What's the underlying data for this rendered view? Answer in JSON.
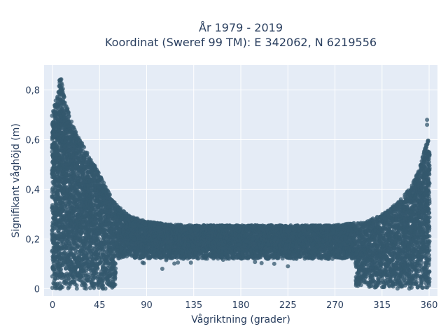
{
  "chart_data": {
    "type": "scatter",
    "title_line1": "År 1979 - 2019",
    "title_line2": "Koordinat (Sweref 99 TM): E 342062, N 6219556",
    "xlabel": "Vågriktning (grader)",
    "ylabel": "Signifikant våghöjd (m)",
    "xlim": [
      -8,
      368
    ],
    "ylim": [
      -0.03,
      0.9
    ],
    "xticks": [
      0,
      45,
      90,
      135,
      180,
      225,
      270,
      315,
      360
    ],
    "yticks": [
      0,
      0.2,
      0.4,
      0.6,
      0.8
    ],
    "ytick_labels": [
      "0",
      "0,2",
      "0,4",
      "0,6",
      "0,8"
    ],
    "grid": true,
    "colors": {
      "marker": "#34586e",
      "plot_bg": "#e5ecf6",
      "grid": "#ffffff",
      "text": "#2a3f5f"
    },
    "envelope": [
      {
        "x": 0,
        "y": 0.7
      },
      {
        "x": 5,
        "y": 0.8
      },
      {
        "x": 8,
        "y": 0.86
      },
      {
        "x": 12,
        "y": 0.75
      },
      {
        "x": 20,
        "y": 0.65
      },
      {
        "x": 30,
        "y": 0.57
      },
      {
        "x": 45,
        "y": 0.46
      },
      {
        "x": 60,
        "y": 0.34
      },
      {
        "x": 75,
        "y": 0.29
      },
      {
        "x": 90,
        "y": 0.27
      },
      {
        "x": 110,
        "y": 0.26
      },
      {
        "x": 135,
        "y": 0.255
      },
      {
        "x": 180,
        "y": 0.255
      },
      {
        "x": 225,
        "y": 0.255
      },
      {
        "x": 270,
        "y": 0.255
      },
      {
        "x": 300,
        "y": 0.27
      },
      {
        "x": 320,
        "y": 0.31
      },
      {
        "x": 335,
        "y": 0.37
      },
      {
        "x": 345,
        "y": 0.43
      },
      {
        "x": 352,
        "y": 0.5
      },
      {
        "x": 356,
        "y": 0.57
      },
      {
        "x": 359,
        "y": 0.6
      },
      {
        "x": 360,
        "y": 0.55
      }
    ],
    "outliers": [
      {
        "x": 358,
        "y": 0.68
      },
      {
        "x": 358,
        "y": 0.66
      },
      {
        "x": 105,
        "y": 0.08
      },
      {
        "x": 212,
        "y": 0.1
      },
      {
        "x": 225,
        "y": 0.09
      }
    ]
  }
}
